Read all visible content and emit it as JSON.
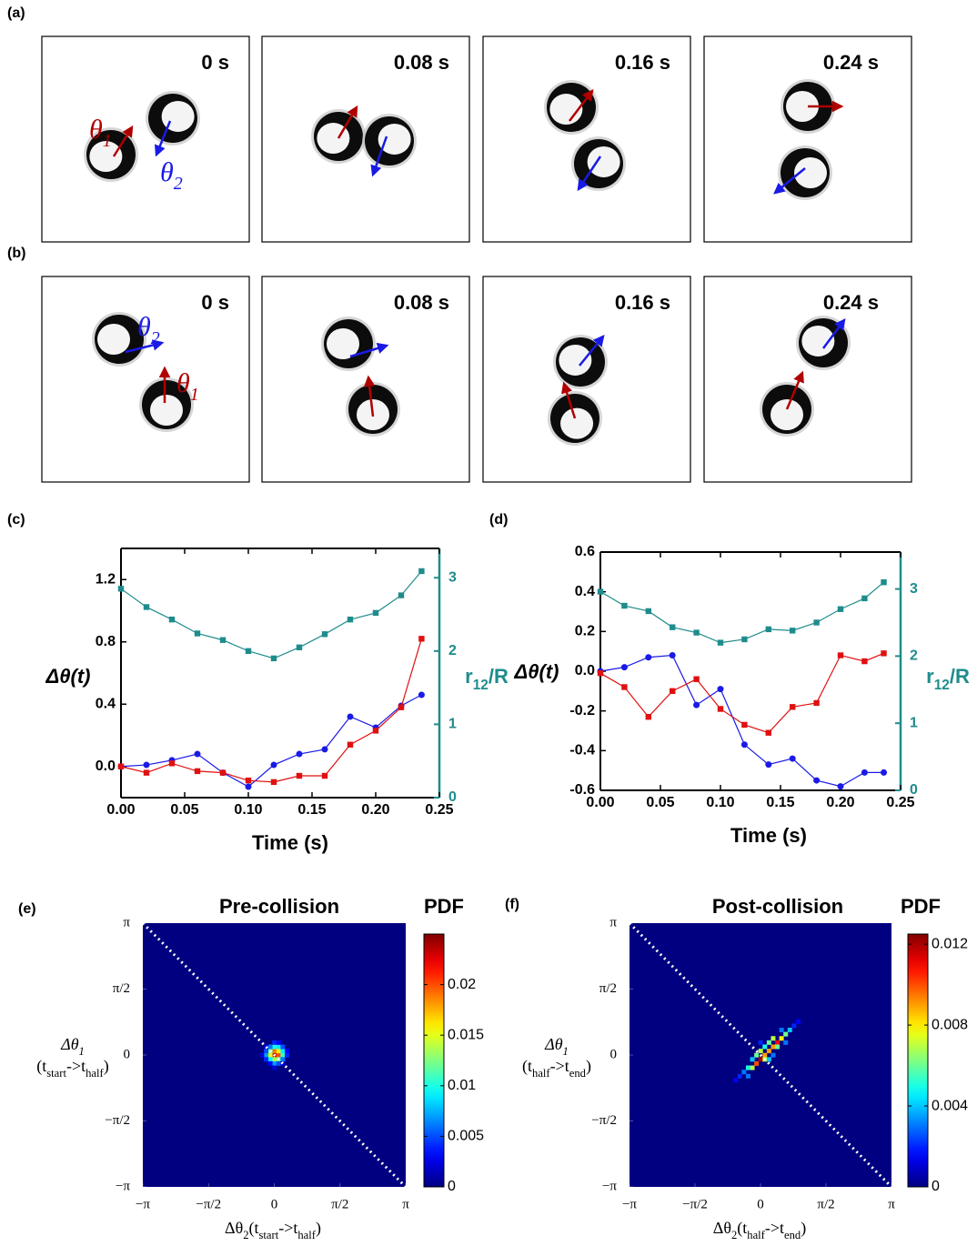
{
  "image_rows": [
    {
      "label": "(a)",
      "frames": [
        {
          "time": "0 s"
        },
        {
          "time": "0.08 s"
        },
        {
          "time": "0.16 s"
        },
        {
          "time": "0.24 s"
        }
      ],
      "annotations": [
        {
          "symbol": "θ",
          "sub": "1",
          "color": "#b00000"
        },
        {
          "symbol": "θ",
          "sub": "2",
          "color": "#1a1ae6"
        }
      ]
    },
    {
      "label": "(b)",
      "frames": [
        {
          "time": "0 s"
        },
        {
          "time": "0.08 s"
        },
        {
          "time": "0.16 s"
        },
        {
          "time": "0.24 s"
        }
      ],
      "annotations": [
        {
          "symbol": "θ",
          "sub": "1",
          "color": "#b00000"
        },
        {
          "symbol": "θ",
          "sub": "2",
          "color": "#1a1ae6"
        }
      ]
    }
  ],
  "chart_data": [
    {
      "type": "line",
      "panel": "(c)",
      "x": [
        0,
        0.02,
        0.04,
        0.06,
        0.08,
        0.1,
        0.12,
        0.14,
        0.16,
        0.18,
        0.2,
        0.22,
        0.236
      ],
      "series": [
        {
          "color": "#1a1ae6",
          "marker": "circle",
          "values": [
            0,
            0.01,
            0.04,
            0.08,
            -0.04,
            -0.13,
            0.01,
            0.08,
            0.11,
            0.32,
            0.25,
            0.39,
            0.46
          ]
        },
        {
          "color": "#e01010",
          "marker": "square",
          "values": [
            0,
            -0.04,
            0.02,
            -0.03,
            -0.04,
            -0.09,
            -0.1,
            -0.06,
            -0.06,
            0.14,
            0.23,
            0.38,
            0.82
          ]
        },
        {
          "color": "#1f8c8c",
          "marker": "square",
          "axis": "y2",
          "values": [
            2.85,
            2.6,
            2.43,
            2.24,
            2.15,
            2.0,
            1.9,
            2.05,
            2.23,
            2.43,
            2.52,
            2.76,
            3.09
          ]
        }
      ],
      "xlim": [
        0,
        0.25
      ],
      "xticks": [
        {
          "value": 0,
          "label": "0.00"
        },
        {
          "value": 0.05,
          "label": "0.05"
        },
        {
          "value": 0.1,
          "label": "0.10"
        },
        {
          "value": 0.15,
          "label": "0.15"
        },
        {
          "value": 0.2,
          "label": "0.20"
        },
        {
          "value": 0.25,
          "label": "0.25"
        }
      ],
      "ylim": [
        -0.2,
        1.4
      ],
      "yticks": [
        {
          "value": 0,
          "label": "0.0"
        },
        0.4,
        0.8,
        1.2
      ],
      "y2lim": [
        0,
        3.4
      ],
      "y2ticks": [
        0,
        1,
        2,
        3
      ],
      "x_label": "Time (s)",
      "y_label": "Δθ(t)",
      "y2_label": [
        {
          "text": "r"
        },
        {
          "text": "12",
          "sub": true
        },
        {
          "text": "/R"
        }
      ]
    },
    {
      "type": "line",
      "panel": "(d)",
      "x": [
        0,
        0.02,
        0.04,
        0.06,
        0.08,
        0.1,
        0.12,
        0.14,
        0.16,
        0.18,
        0.2,
        0.22,
        0.236
      ],
      "series": [
        {
          "color": "#1a1ae6",
          "marker": "circle",
          "values": [
            0,
            0.02,
            0.07,
            0.08,
            -0.17,
            -0.09,
            -0.37,
            -0.47,
            -0.44,
            -0.55,
            -0.58,
            -0.51,
            -0.51
          ]
        },
        {
          "color": "#e01010",
          "marker": "square",
          "values": [
            -0.01,
            -0.08,
            -0.23,
            -0.1,
            -0.04,
            -0.19,
            -0.27,
            -0.31,
            -0.18,
            -0.16,
            0.08,
            0.05,
            0.09
          ]
        },
        {
          "color": "#1f8c8c",
          "marker": "square",
          "axis": "y2",
          "values": [
            2.96,
            2.75,
            2.67,
            2.43,
            2.35,
            2.2,
            2.25,
            2.4,
            2.38,
            2.5,
            2.7,
            2.86,
            3.1
          ]
        }
      ],
      "xlim": [
        0,
        0.25
      ],
      "xticks": [
        {
          "value": 0,
          "label": "0.00"
        },
        {
          "value": 0.05,
          "label": "0.05"
        },
        {
          "value": 0.1,
          "label": "0.10"
        },
        {
          "value": 0.15,
          "label": "0.15"
        },
        {
          "value": 0.2,
          "label": "0.20"
        },
        {
          "value": 0.25,
          "label": "0.25"
        }
      ],
      "ylim": [
        -0.6,
        0.6
      ],
      "yticks": [
        -0.6,
        -0.4,
        -0.2,
        {
          "value": 0,
          "label": "0.0"
        },
        0.2,
        0.4,
        0.6
      ],
      "y2lim": [
        0,
        3.55
      ],
      "y2ticks": [
        0,
        1,
        2,
        3
      ],
      "x_label": "Time (s)",
      "y_label": "Δθ(t)",
      "y2_label": [
        {
          "text": "r"
        },
        {
          "text": "12",
          "sub": true
        },
        {
          "text": "/R"
        }
      ]
    },
    {
      "type": "heatmap",
      "panel": "(e)",
      "title": "Pre-collision",
      "colorbar_label": "PDF",
      "colormap": "jet",
      "x": [
        0,
        0.1,
        0,
        0.1,
        -0.1,
        0,
        0.1,
        -0.1,
        0.2,
        0,
        -0.1,
        0.2,
        0.1,
        -0.2,
        0,
        0.2,
        -0.2,
        0.3,
        0,
        -0.2,
        0.1,
        0.2,
        -0.1,
        -0.1,
        0.3,
        0.1,
        -0.3,
        0,
        0.2,
        -0.2
      ],
      "y": [
        0,
        0,
        0.1,
        0.1,
        0,
        -0.1,
        -0.1,
        0.1,
        0,
        0.2,
        -0.1,
        0.1,
        0.2,
        0,
        -0.2,
        0.2,
        -0.1,
        0,
        0.3,
        0.1,
        -0.2,
        -0.1,
        0.2,
        -0.2,
        0.1,
        0.3,
        0,
        -0.3,
        -0.2,
        0.2
      ],
      "values": [
        0.023,
        0.02,
        0.019,
        0.016,
        0.015,
        0.014,
        0.012,
        0.012,
        0.011,
        0.01,
        0.009,
        0.009,
        0.009,
        0.007,
        0.007,
        0.005,
        0.004,
        0.004,
        0.004,
        0.005,
        0.005,
        0.006,
        0.006,
        0.003,
        0.003,
        0.003,
        0.002,
        0.002,
        0.002,
        0.002
      ],
      "xlim": [
        -3.14159,
        3.14159
      ],
      "ylim": [
        -3.14159,
        3.14159
      ],
      "xticks": [
        {
          "value": -3.14159,
          "label": "−π"
        },
        {
          "value": -1.5708,
          "label": "−π/2"
        },
        0,
        {
          "value": 1.5708,
          "label": "π/2"
        },
        {
          "value": 3.14159,
          "label": "π"
        }
      ],
      "yticks": [
        {
          "value": -3.14159,
          "label": "−π"
        },
        {
          "value": -1.5708,
          "label": "−π/2"
        },
        0,
        {
          "value": 1.5708,
          "label": "π/2"
        },
        {
          "value": 3.14159,
          "label": "π"
        }
      ],
      "clim": [
        0,
        0.025
      ],
      "cticks": [
        0,
        0.005,
        0.01,
        0.015,
        0.02
      ],
      "x_label": [
        {
          "text": "Δθ"
        },
        {
          "text": "2",
          "sub": true
        },
        {
          "text": "(t"
        },
        {
          "text": "start",
          "sub": true
        },
        {
          "text": "->t"
        },
        {
          "text": "half",
          "sub": true
        },
        {
          "text": ")"
        }
      ],
      "y_label": [
        [
          {
            "text": "Δθ"
          },
          {
            "text": "1",
            "sub": true
          }
        ],
        [
          {
            "text": "(t"
          },
          {
            "text": "start",
            "sub": true
          },
          {
            "text": "->t"
          },
          {
            "text": "half",
            "sub": true
          },
          {
            "text": ")"
          }
        ]
      ]
    },
    {
      "type": "heatmap",
      "panel": "(f)",
      "title": "Post-collision",
      "colorbar_label": "PDF",
      "colormap": "jet",
      "x": [
        0,
        0.4,
        0.1,
        0.2,
        0.3,
        -0.1,
        0.5,
        -0.2,
        0,
        0.1,
        0.3,
        0.4,
        0.6,
        -0.1,
        -0.3,
        0.2,
        0.1,
        0.2,
        -0.2,
        0.7,
        -0.4,
        0.5,
        0.6,
        -0.3,
        0.8,
        -0.5,
        0,
        0.3,
        -0.6,
        0.9
      ],
      "y": [
        -0.1,
        0.3,
        0,
        0.1,
        0.2,
        -0.2,
        0.4,
        -0.3,
        0.1,
        -0.1,
        0.4,
        0.2,
        0.5,
        0,
        -0.3,
        0.3,
        0.2,
        -0.1,
        -0.1,
        0.6,
        -0.4,
        0.6,
        0.3,
        -0.5,
        0.7,
        -0.5,
        0.3,
        0,
        -0.6,
        0.8
      ],
      "values": [
        0.012,
        0.011,
        0.009,
        0.009,
        0.009,
        0.01,
        0.008,
        0.007,
        0.007,
        0.007,
        0.007,
        0.006,
        0.006,
        0.006,
        0.005,
        0.006,
        0.005,
        0.004,
        0.004,
        0.004,
        0.003,
        0.003,
        0.003,
        0.003,
        0.002,
        0.002,
        0.002,
        0.003,
        0.0015,
        0.0015
      ],
      "xlim": [
        -3.14159,
        3.14159
      ],
      "ylim": [
        -3.14159,
        3.14159
      ],
      "xticks": [
        {
          "value": -3.14159,
          "label": "−π"
        },
        {
          "value": -1.5708,
          "label": "−π/2"
        },
        0,
        {
          "value": 1.5708,
          "label": "π/2"
        },
        {
          "value": 3.14159,
          "label": "π"
        }
      ],
      "yticks": [
        {
          "value": -3.14159,
          "label": "−π"
        },
        {
          "value": -1.5708,
          "label": "−π/2"
        },
        0,
        {
          "value": 1.5708,
          "label": "π/2"
        },
        {
          "value": 3.14159,
          "label": "π"
        }
      ],
      "clim": [
        0,
        0.0125
      ],
      "cticks": [
        0,
        0.004,
        0.008,
        0.012
      ],
      "x_label": [
        {
          "text": "Δθ"
        },
        {
          "text": "2",
          "sub": true
        },
        {
          "text": "(t"
        },
        {
          "text": "half",
          "sub": true
        },
        {
          "text": "->t"
        },
        {
          "text": "end",
          "sub": true
        },
        {
          "text": ")"
        }
      ],
      "y_label": [
        [
          {
            "text": "Δθ"
          },
          {
            "text": "1",
            "sub": true
          }
        ],
        [
          {
            "text": "(t"
          },
          {
            "text": "half",
            "sub": true
          },
          {
            "text": "->t"
          },
          {
            "text": "end",
            "sub": true
          },
          {
            "text": ")"
          }
        ]
      ]
    }
  ]
}
